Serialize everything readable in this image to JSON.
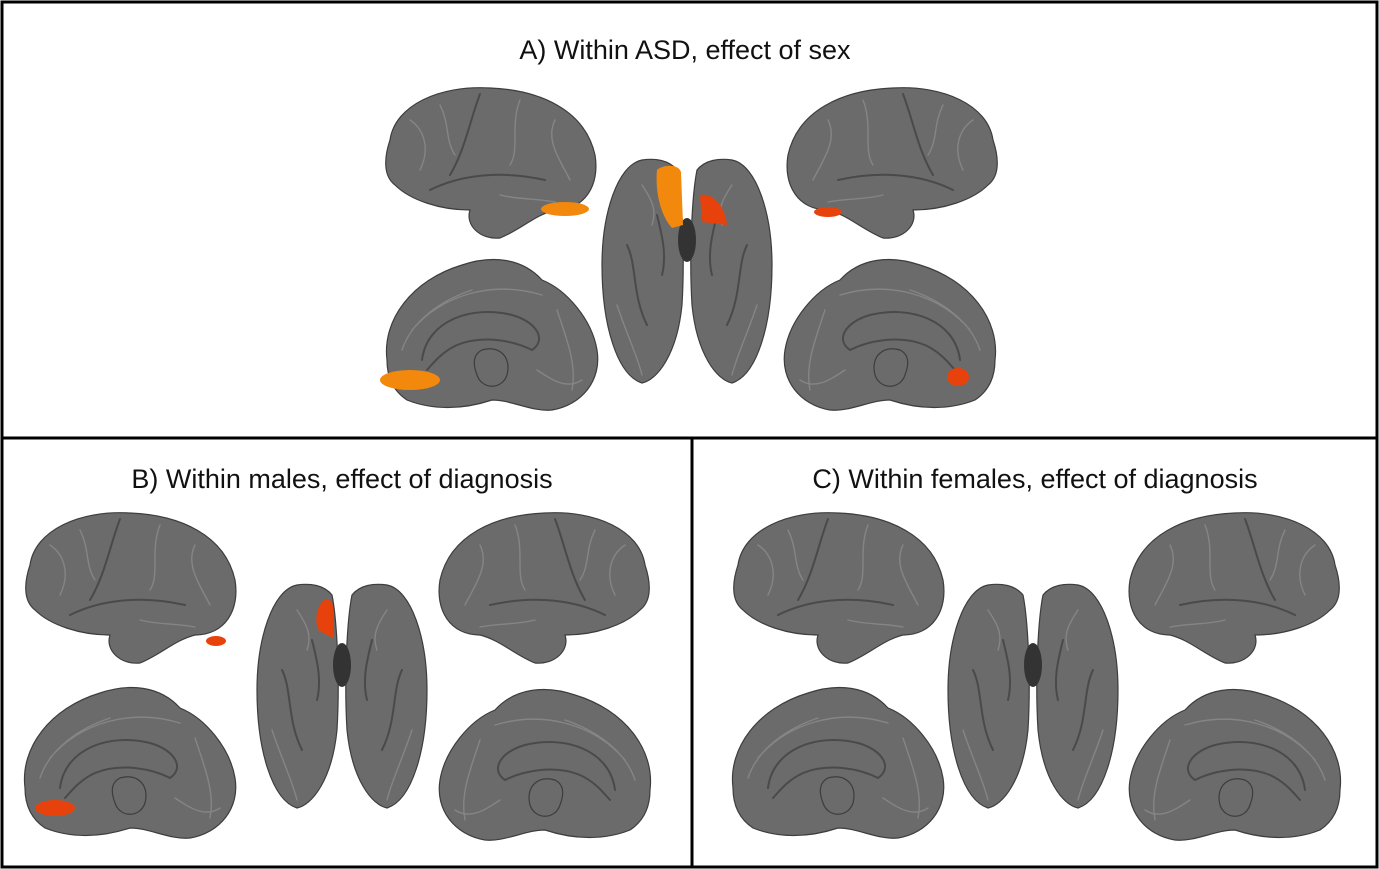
{
  "panels": [
    {
      "title": "A) Within ASD, effect of sex"
    },
    {
      "title": "B) Within males, effect of diagnosis"
    },
    {
      "title": "C) Within females, effect of diagnosis"
    }
  ]
}
